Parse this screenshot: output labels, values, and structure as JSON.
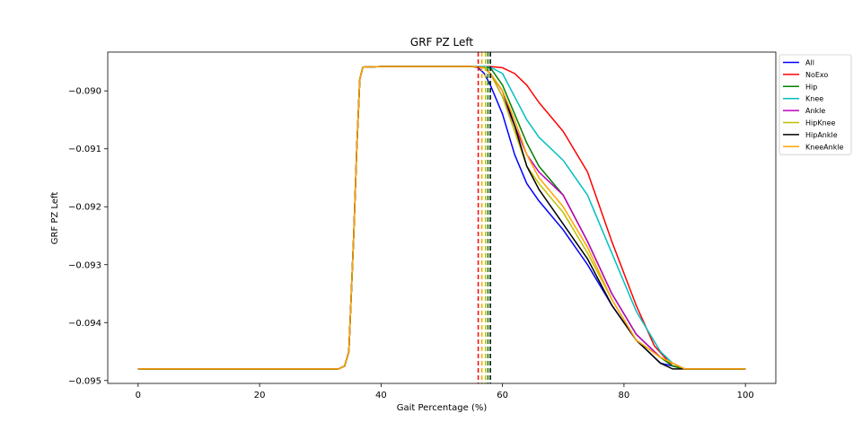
{
  "chart_data": {
    "type": "line",
    "title": "GRF PZ Left",
    "xlabel": "Gait Percentage (%)",
    "ylabel": "GRF PZ Left",
    "xlim": [
      -5,
      105
    ],
    "ylim": [
      -0.09505,
      -0.08933
    ],
    "xticks": [
      0,
      20,
      40,
      60,
      80,
      100
    ],
    "xtick_labels": [
      "0",
      "20",
      "40",
      "60",
      "80",
      "100"
    ],
    "yticks": [
      -0.095,
      -0.094,
      -0.093,
      -0.092,
      -0.091,
      -0.09
    ],
    "ytick_labels": [
      "−0.095",
      "−0.094",
      "−0.093",
      "−0.092",
      "−0.091",
      "−0.090"
    ],
    "grid": false,
    "legend_position": "outside-top-right",
    "series": [
      {
        "name": "All",
        "color": "#0000ff",
        "x": [
          0,
          33,
          34,
          34.7,
          35.5,
          36,
          36.5,
          37,
          40,
          55,
          56,
          57,
          58,
          60,
          62,
          64,
          66,
          70,
          74,
          78,
          82,
          86,
          88,
          90,
          92,
          95,
          100
        ],
        "y": [
          -0.0948,
          -0.0948,
          -0.09475,
          -0.0945,
          -0.0925,
          -0.091,
          -0.0898,
          -0.08959,
          -0.08958,
          -0.08958,
          -0.0896,
          -0.0897,
          -0.0899,
          -0.0904,
          -0.0911,
          -0.0916,
          -0.0919,
          -0.0924,
          -0.093,
          -0.0937,
          -0.0943,
          -0.0947,
          -0.09475,
          -0.0948,
          -0.0948,
          -0.0948,
          -0.0948
        ]
      },
      {
        "name": "NoExo",
        "color": "#ff0000",
        "x": [
          0,
          33,
          34,
          34.7,
          35.5,
          36,
          36.5,
          37,
          40,
          55,
          58,
          60,
          62,
          64,
          66,
          70,
          74,
          78,
          82,
          85,
          88,
          90,
          92,
          95,
          100
        ],
        "y": [
          -0.0948,
          -0.0948,
          -0.09475,
          -0.0945,
          -0.0925,
          -0.091,
          -0.0898,
          -0.08959,
          -0.08958,
          -0.08958,
          -0.08958,
          -0.0896,
          -0.0897,
          -0.0899,
          -0.0902,
          -0.0907,
          -0.0914,
          -0.0926,
          -0.0937,
          -0.0944,
          -0.09475,
          -0.0948,
          -0.0948,
          -0.0948,
          -0.0948
        ]
      },
      {
        "name": "Hip",
        "color": "#008000",
        "x": [
          0,
          33,
          34,
          34.7,
          35.5,
          36,
          36.5,
          37,
          40,
          55,
          57,
          58,
          60,
          62,
          64,
          66,
          70,
          74,
          78,
          82,
          86,
          88,
          90,
          92,
          95,
          100
        ],
        "y": [
          -0.0948,
          -0.0948,
          -0.09475,
          -0.0945,
          -0.0925,
          -0.091,
          -0.0898,
          -0.08959,
          -0.08958,
          -0.08958,
          -0.08959,
          -0.0896,
          -0.0899,
          -0.0904,
          -0.0909,
          -0.0913,
          -0.0918,
          -0.0926,
          -0.0935,
          -0.0942,
          -0.0946,
          -0.09475,
          -0.0948,
          -0.0948,
          -0.0948,
          -0.0948
        ]
      },
      {
        "name": "Knee",
        "color": "#00bfbf",
        "x": [
          0,
          33,
          34,
          34.7,
          35.5,
          36,
          36.5,
          37,
          40,
          55,
          57,
          58,
          60,
          62,
          64,
          66,
          70,
          74,
          78,
          82,
          86,
          88,
          90,
          92,
          95,
          100
        ],
        "y": [
          -0.0948,
          -0.0948,
          -0.09475,
          -0.0945,
          -0.0925,
          -0.091,
          -0.0898,
          -0.08959,
          -0.08958,
          -0.08958,
          -0.08958,
          -0.08959,
          -0.0897,
          -0.0901,
          -0.0905,
          -0.0908,
          -0.0912,
          -0.0918,
          -0.0928,
          -0.0938,
          -0.0945,
          -0.0947,
          -0.0948,
          -0.0948,
          -0.0948,
          -0.0948
        ]
      },
      {
        "name": "Ankle",
        "color": "#bf00bf",
        "x": [
          0,
          33,
          34,
          34.7,
          35.5,
          36,
          36.5,
          37,
          40,
          55,
          57,
          58,
          60,
          62,
          64,
          66,
          70,
          74,
          78,
          82,
          86,
          88,
          90,
          92,
          95,
          100
        ],
        "y": [
          -0.0948,
          -0.0948,
          -0.09475,
          -0.0945,
          -0.0925,
          -0.091,
          -0.0898,
          -0.08959,
          -0.08958,
          -0.08958,
          -0.0896,
          -0.0897,
          -0.0901,
          -0.0906,
          -0.0911,
          -0.0914,
          -0.0918,
          -0.0926,
          -0.0935,
          -0.0942,
          -0.0946,
          -0.0947,
          -0.0948,
          -0.0948,
          -0.0948,
          -0.0948
        ]
      },
      {
        "name": "HipKnee",
        "color": "#bfbf00",
        "x": [
          0,
          33,
          34,
          34.7,
          35.5,
          36,
          36.5,
          37,
          40,
          55,
          57,
          58,
          60,
          62,
          64,
          66,
          70,
          74,
          78,
          82,
          86,
          88,
          90,
          92,
          95,
          100
        ],
        "y": [
          -0.0948,
          -0.0948,
          -0.09475,
          -0.0945,
          -0.0925,
          -0.091,
          -0.0898,
          -0.08959,
          -0.08958,
          -0.08958,
          -0.0896,
          -0.0897,
          -0.0901,
          -0.0907,
          -0.0913,
          -0.0916,
          -0.0921,
          -0.0928,
          -0.0936,
          -0.0943,
          -0.0946,
          -0.0947,
          -0.0948,
          -0.0948,
          -0.0948,
          -0.0948
        ]
      },
      {
        "name": "HipAnkle",
        "color": "#000000",
        "x": [
          0,
          33,
          34,
          34.7,
          35.5,
          36,
          36.5,
          37,
          40,
          55,
          57,
          58,
          60,
          62,
          64,
          66,
          70,
          74,
          78,
          82,
          86,
          88,
          90,
          92,
          95,
          100
        ],
        "y": [
          -0.0948,
          -0.0948,
          -0.09475,
          -0.0945,
          -0.0925,
          -0.091,
          -0.0898,
          -0.08959,
          -0.08958,
          -0.08958,
          -0.0896,
          -0.0897,
          -0.09,
          -0.0906,
          -0.0913,
          -0.0917,
          -0.0923,
          -0.0929,
          -0.0937,
          -0.0943,
          -0.0947,
          -0.0948,
          -0.0948,
          -0.0948,
          -0.0948,
          -0.0948
        ]
      },
      {
        "name": "KneeAnkle",
        "color": "#ffa500",
        "x": [
          0,
          33,
          34,
          34.7,
          35.5,
          36,
          36.5,
          37,
          40,
          55,
          57,
          58,
          60,
          62,
          64,
          66,
          70,
          74,
          78,
          82,
          86,
          88,
          90,
          92,
          95,
          100
        ],
        "y": [
          -0.0948,
          -0.0948,
          -0.09475,
          -0.0945,
          -0.0925,
          -0.091,
          -0.0898,
          -0.08959,
          -0.08958,
          -0.08958,
          -0.0896,
          -0.0897,
          -0.09,
          -0.0905,
          -0.0911,
          -0.0915,
          -0.092,
          -0.0927,
          -0.0936,
          -0.0943,
          -0.0946,
          -0.0947,
          -0.0948,
          -0.0948,
          -0.0948,
          -0.0948
        ]
      }
    ],
    "vlines": [
      {
        "x": 56.0,
        "color": "#ff0000"
      },
      {
        "x": 56.6,
        "color": "#ffa500"
      },
      {
        "x": 57.2,
        "color": "#bfbf00"
      },
      {
        "x": 57.6,
        "color": "#008000"
      },
      {
        "x": 58.0,
        "color": "#000000"
      }
    ]
  }
}
